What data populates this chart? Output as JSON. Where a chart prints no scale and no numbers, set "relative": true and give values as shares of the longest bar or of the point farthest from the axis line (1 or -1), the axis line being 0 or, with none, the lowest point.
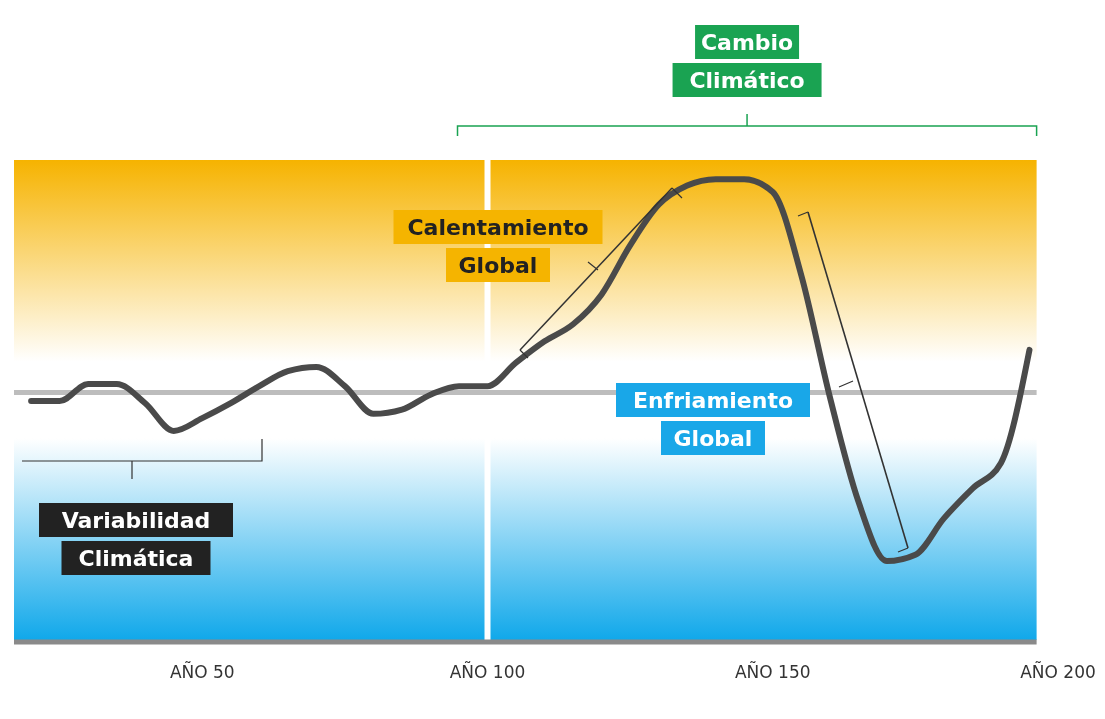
{
  "chart_data": {
    "type": "line",
    "relative": true,
    "categories": [
      null,
      null,
      null,
      null,
      null,
      null,
      "AÑO 50",
      null,
      null,
      null,
      null,
      null,
      null,
      null,
      null,
      null,
      "AÑO 100",
      null,
      null,
      null,
      null,
      null,
      null,
      null,
      null,
      null,
      "AÑO 150",
      null,
      null,
      null,
      null,
      null,
      null,
      null,
      null,
      null,
      "AÑO 200"
    ],
    "series": [
      {
        "color": "#4a4a4a",
        "values": [
          -0.04,
          -0.04,
          0.04,
          0.04,
          -0.05,
          -0.18,
          -0.12,
          -0.05,
          0.03,
          0.1,
          0.12,
          0.03,
          -0.1,
          -0.08,
          -0.01,
          0.03,
          0.03,
          0.14,
          0.24,
          0.32,
          0.46,
          0.69,
          0.88,
          0.97,
          1.0,
          1.0,
          0.94,
          0.55,
          -0.02,
          -0.51,
          -0.79,
          -0.76,
          -0.59,
          -0.45,
          -0.33,
          0.2,
          null
        ]
      }
    ],
    "marker": "none",
    "line_style": "solid",
    "ref_lines": [
      {
        "axis": "x",
        "value": "AÑO 100",
        "color": "#ffffff"
      }
    ],
    "annotations": [
      "Cambio Climático",
      "Calentamiento Global",
      "Enfriamiento Global",
      "Variabilidad Climática"
    ]
  }
}
